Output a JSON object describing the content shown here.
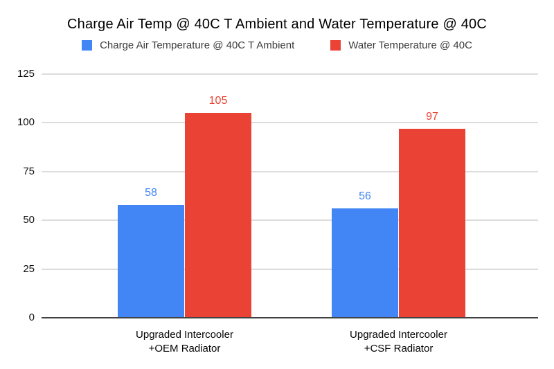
{
  "title": "Charge Air Temp @ 40C T Ambient and Water Temperature @ 40C",
  "legend": [
    {
      "label": "Charge Air Temperature @ 40C T Ambient",
      "color": "#4285F4"
    },
    {
      "label": "Water Temperature @ 40C",
      "color": "#EA4335"
    }
  ],
  "colors": {
    "series_blue": "#4285F4",
    "series_red": "#EA4335",
    "gridline": "#dcdcdc",
    "axis_line": "#424242",
    "background": "#ffffff"
  },
  "chart_data": {
    "type": "bar",
    "title": "Charge Air Temp @ 40C T Ambient and Water Temperature @ 40C",
    "categories": [
      "Upgraded Intercooler\n+OEM Radiator",
      "Upgraded Intercooler\n+CSF Radiator"
    ],
    "series": [
      {
        "name": "Charge Air Temperature @ 40C T Ambient",
        "color": "#4285F4",
        "values": [
          58,
          56
        ]
      },
      {
        "name": "Water Temperature @ 40C",
        "color": "#EA4335",
        "values": [
          105,
          97
        ]
      }
    ],
    "xlabel": "",
    "ylabel": "",
    "ylim": [
      0,
      125
    ],
    "yticks": [
      0,
      25,
      50,
      75,
      100,
      125
    ],
    "grid": true,
    "legend_position": "top",
    "data_labels": true
  }
}
